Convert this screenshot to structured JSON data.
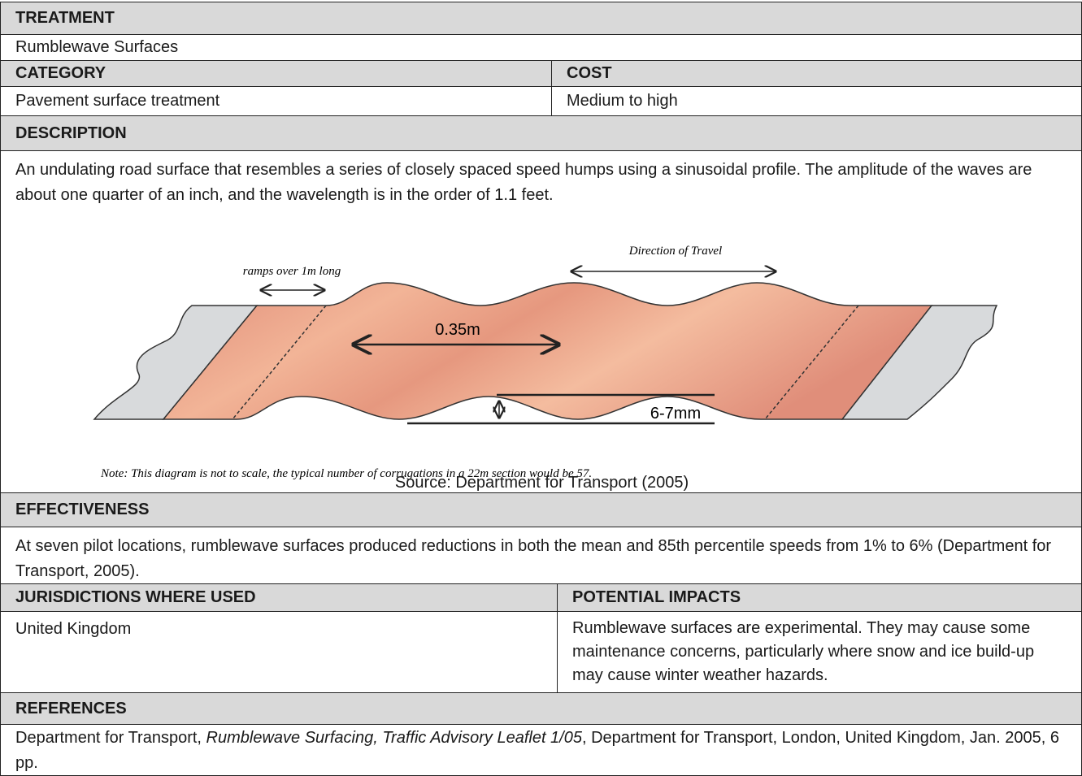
{
  "treatment": {
    "label": "TREATMENT",
    "value": "Rumblewave Surfaces"
  },
  "category": {
    "label": "CATEGORY",
    "value": "Pavement surface treatment"
  },
  "cost": {
    "label": "COST",
    "value": "Medium to high"
  },
  "description": {
    "label": "DESCRIPTION",
    "text": "An undulating road surface that resembles a series of closely spaced speed humps using a sinusoidal profile. The amplitude of the waves are about one quarter of an inch, and the wavelength is in the order of 1.1 feet."
  },
  "figure": {
    "ramps_label": "ramps over 1m long",
    "direction_label": "Direction of Travel",
    "wavelength_label": "0.35m",
    "amplitude_label": "6-7mm",
    "note": "Note: This diagram is not to scale, the typical number of corrugations in a 22m section would be 57.",
    "source": "Source: Department for Transport (2005)"
  },
  "effectiveness": {
    "label": "EFFECTIVENESS",
    "text": "At seven pilot locations, rumblewave surfaces produced reductions in both the mean and 85th percentile speeds from 1% to 6% (Department for Transport, 2005)."
  },
  "jurisdictions": {
    "label": "JURISDICTIONS WHERE USED",
    "text": "United Kingdom"
  },
  "potential_impacts": {
    "label": "POTENTIAL IMPACTS",
    "text": "Rumblewave surfaces are experimental. They may cause some maintenance concerns, particularly where snow and ice build-up may cause winter weather hazards."
  },
  "references": {
    "label": "REFERENCES",
    "parts": [
      "Department for Transport, ",
      "Rumblewave Surfacing, Traffic Advisory Leaflet 1/05",
      ", Department for Transport, London, United Kingdom, Jan. 2005, 6 pp."
    ]
  }
}
